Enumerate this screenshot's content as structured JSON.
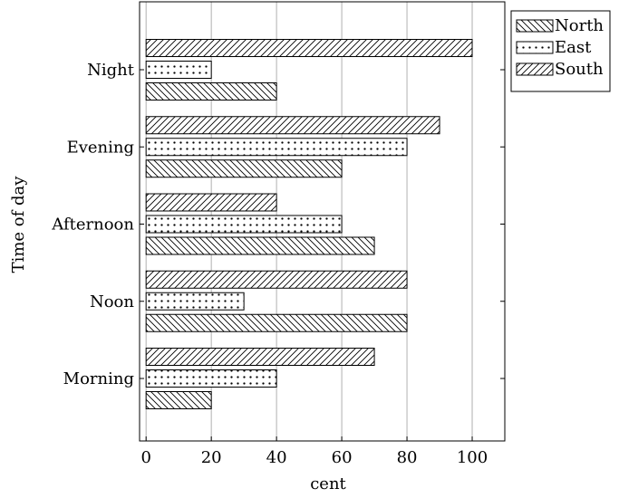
{
  "chart_data": {
    "type": "bar",
    "orientation": "horizontal",
    "categories": [
      "Morning",
      "Noon",
      "Afternoon",
      "Evening",
      "Night"
    ],
    "series": [
      {
        "name": "North",
        "values": [
          20,
          80,
          70,
          60,
          40
        ],
        "pattern": "diag-down"
      },
      {
        "name": "East",
        "values": [
          40,
          30,
          60,
          80,
          20
        ],
        "pattern": "dots"
      },
      {
        "name": "South",
        "values": [
          70,
          80,
          40,
          90,
          100
        ],
        "pattern": "diag-up"
      }
    ],
    "xlabel": "cent",
    "ylabel": "Time of day",
    "xlim": [
      -2,
      110
    ],
    "xticks": [
      "0",
      "20",
      "40",
      "60",
      "80",
      "100"
    ],
    "grid": "vertical",
    "legend_position": "outside top-right"
  }
}
